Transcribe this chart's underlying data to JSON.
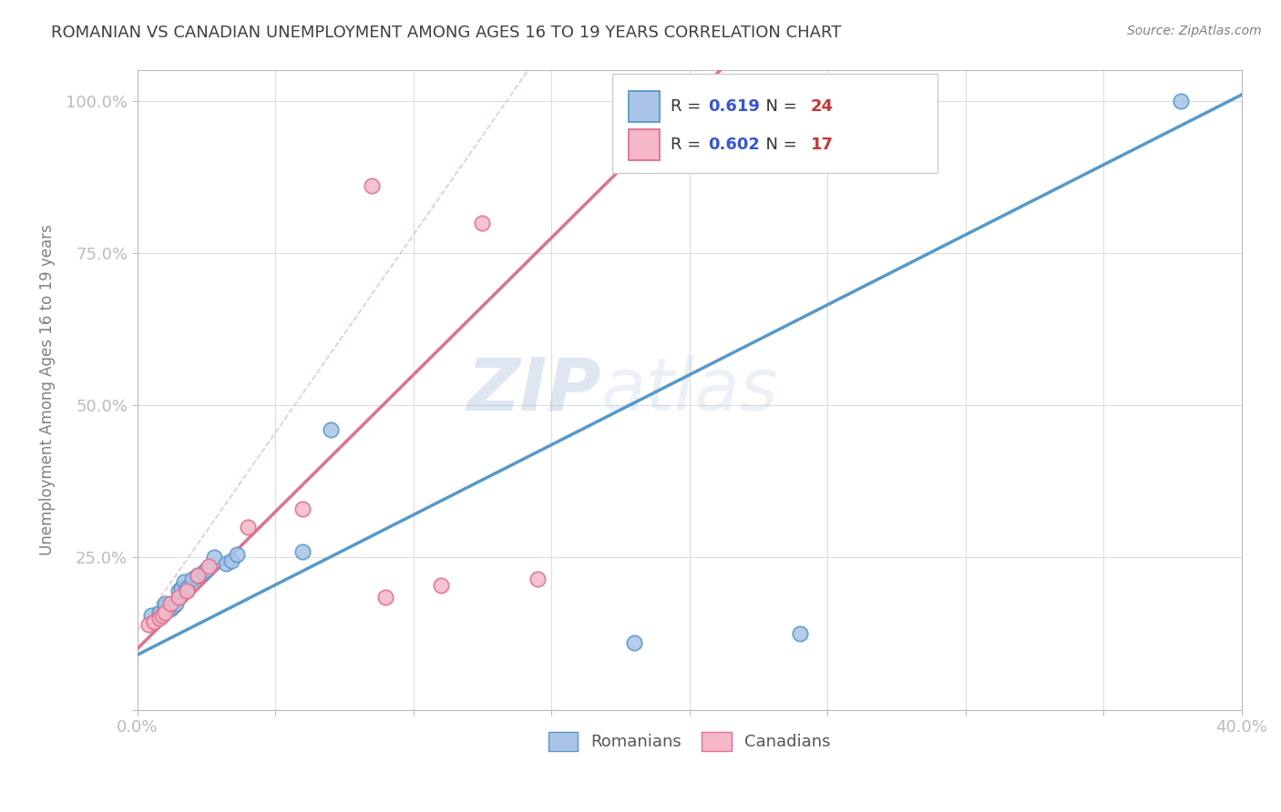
{
  "title": "ROMANIAN VS CANADIAN UNEMPLOYMENT AMONG AGES 16 TO 19 YEARS CORRELATION CHART",
  "source": "Source: ZipAtlas.com",
  "ylabel_label": "Unemployment Among Ages 16 to 19 years",
  "xlim": [
    0.0,
    0.4
  ],
  "ylim": [
    0.0,
    1.05
  ],
  "xticks": [
    0.0,
    0.05,
    0.1,
    0.15,
    0.2,
    0.25,
    0.3,
    0.35,
    0.4
  ],
  "xticklabels": [
    "0.0%",
    "",
    "",
    "",
    "",
    "",
    "",
    "",
    "40.0%"
  ],
  "ytick_positions": [
    0.0,
    0.25,
    0.5,
    0.75,
    1.0
  ],
  "yticklabels": [
    "",
    "25.0%",
    "50.0%",
    "75.0%",
    "100.0%"
  ],
  "romanians_x": [
    0.005,
    0.008,
    0.01,
    0.01,
    0.012,
    0.013,
    0.014,
    0.015,
    0.016,
    0.017,
    0.018,
    0.02,
    0.022,
    0.024,
    0.025,
    0.028,
    0.032,
    0.034,
    0.036,
    0.06,
    0.07,
    0.18,
    0.24,
    0.378
  ],
  "romanians_y": [
    0.155,
    0.16,
    0.17,
    0.175,
    0.165,
    0.17,
    0.175,
    0.195,
    0.2,
    0.21,
    0.2,
    0.215,
    0.22,
    0.225,
    0.23,
    0.25,
    0.24,
    0.245,
    0.255,
    0.26,
    0.46,
    0.11,
    0.125,
    1.0
  ],
  "canadians_x": [
    0.004,
    0.006,
    0.008,
    0.009,
    0.01,
    0.012,
    0.015,
    0.018,
    0.022,
    0.026,
    0.04,
    0.06,
    0.085,
    0.09,
    0.11,
    0.125,
    0.145
  ],
  "canadians_y": [
    0.14,
    0.145,
    0.15,
    0.155,
    0.16,
    0.175,
    0.185,
    0.195,
    0.22,
    0.235,
    0.3,
    0.33,
    0.86,
    0.185,
    0.205,
    0.8,
    0.215
  ],
  "line_slope_romanian": 2.3,
  "line_intercept_romanian": 0.09,
  "line_slope_canadian": 4.5,
  "line_intercept_canadian": 0.1,
  "R_romanian": 0.619,
  "N_romanian": 24,
  "R_canadian": 0.602,
  "N_canadian": 17,
  "color_romanian": "#aac4e8",
  "color_canadian": "#f4b8c8",
  "line_color_romanian": "#5599cc",
  "line_color_canadian": "#e07090",
  "diagonal_color": "#e8c0cc",
  "watermark_zip": "ZIP",
  "watermark_atlas": "atlas",
  "title_color": "#404040",
  "title_fontsize": 13,
  "axis_label_color": "#808080",
  "tick_color": "#4455cc",
  "source_color": "#808080",
  "legend_R_color": "#3355dd",
  "legend_N_color": "#cc3333"
}
